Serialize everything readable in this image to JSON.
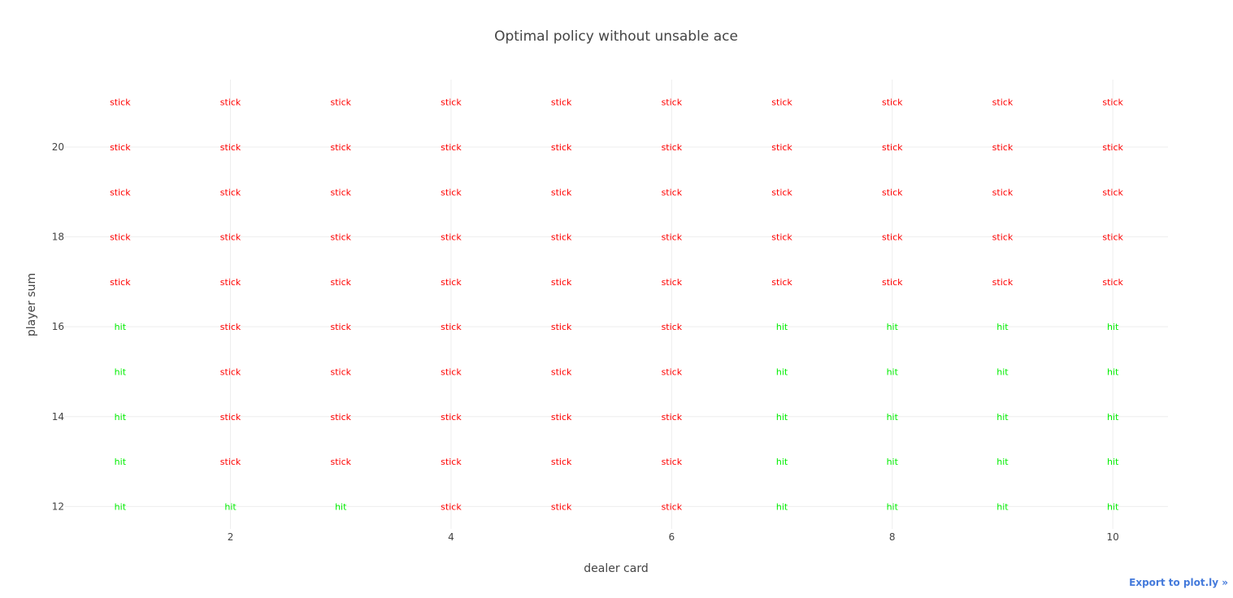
{
  "chart_data": {
    "type": "scatter",
    "mode": "text",
    "title": "Optimal policy without unsable ace",
    "xlabel": "dealer card",
    "ylabel": "player sum",
    "x": [
      1,
      2,
      3,
      4,
      5,
      6,
      7,
      8,
      9,
      10
    ],
    "y": [
      12,
      13,
      14,
      15,
      16,
      17,
      18,
      19,
      20,
      21
    ],
    "xlim": [
      0.5,
      10.5
    ],
    "ylim": [
      11.5,
      21.5
    ],
    "x_ticks": [
      2,
      4,
      6,
      8,
      10
    ],
    "y_ticks": [
      12,
      14,
      16,
      18,
      20
    ],
    "grid": true,
    "colors": {
      "stick": "#ff0000",
      "hit": "#00ee00"
    },
    "policy": [
      [
        "hit",
        "hit",
        "hit",
        "stick",
        "stick",
        "stick",
        "hit",
        "hit",
        "hit",
        "hit"
      ],
      [
        "hit",
        "stick",
        "stick",
        "stick",
        "stick",
        "stick",
        "hit",
        "hit",
        "hit",
        "hit"
      ],
      [
        "hit",
        "stick",
        "stick",
        "stick",
        "stick",
        "stick",
        "hit",
        "hit",
        "hit",
        "hit"
      ],
      [
        "hit",
        "stick",
        "stick",
        "stick",
        "stick",
        "stick",
        "hit",
        "hit",
        "hit",
        "hit"
      ],
      [
        "hit",
        "stick",
        "stick",
        "stick",
        "stick",
        "stick",
        "hit",
        "hit",
        "hit",
        "hit"
      ],
      [
        "stick",
        "stick",
        "stick",
        "stick",
        "stick",
        "stick",
        "stick",
        "stick",
        "stick",
        "stick"
      ],
      [
        "stick",
        "stick",
        "stick",
        "stick",
        "stick",
        "stick",
        "stick",
        "stick",
        "stick",
        "stick"
      ],
      [
        "stick",
        "stick",
        "stick",
        "stick",
        "stick",
        "stick",
        "stick",
        "stick",
        "stick",
        "stick"
      ],
      [
        "stick",
        "stick",
        "stick",
        "stick",
        "stick",
        "stick",
        "stick",
        "stick",
        "stick",
        "stick"
      ],
      [
        "stick",
        "stick",
        "stick",
        "stick",
        "stick",
        "stick",
        "stick",
        "stick",
        "stick",
        "stick"
      ]
    ]
  },
  "export_link": "Export to plot.ly »"
}
